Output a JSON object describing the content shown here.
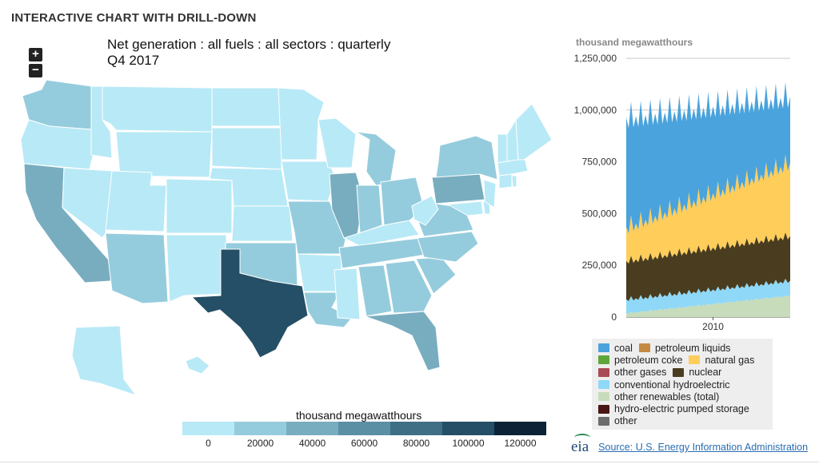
{
  "page": {
    "header": "INTERACTIVE CHART WITH DRILL-DOWN",
    "zoom_in_label": "+",
    "zoom_out_label": "−",
    "source_text": "Source: U.S. Energy Information Administration",
    "logo_text": "eia"
  },
  "colors": {
    "map_scale": [
      "#b8e9f6",
      "#95ccdd",
      "#78adbf",
      "#5b8fa3",
      "#3f6f85",
      "#244f66",
      "#0b2237"
    ],
    "page_bg": "#ffffff"
  },
  "chart_data": [
    {
      "type": "choropleth",
      "title": "Net generation : all fuels : all sectors : quarterly",
      "subtitle": "Q4 2017",
      "legend_title": "thousand megawatthours",
      "scale_ticks": [
        0,
        20000,
        40000,
        60000,
        80000,
        100000,
        120000
      ],
      "regions": [
        {
          "state": "WA",
          "value": 28000
        },
        {
          "state": "OR",
          "value": 15000
        },
        {
          "state": "CA",
          "value": 52000
        },
        {
          "state": "NV",
          "value": 10000
        },
        {
          "state": "ID",
          "value": 4000
        },
        {
          "state": "MT",
          "value": 7000
        },
        {
          "state": "WY",
          "value": 12000
        },
        {
          "state": "UT",
          "value": 10000
        },
        {
          "state": "AZ",
          "value": 27000
        },
        {
          "state": "CO",
          "value": 14000
        },
        {
          "state": "NM",
          "value": 8000
        },
        {
          "state": "ND",
          "value": 10000
        },
        {
          "state": "SD",
          "value": 4000
        },
        {
          "state": "NE",
          "value": 10000
        },
        {
          "state": "KS",
          "value": 12000
        },
        {
          "state": "OK",
          "value": 20000
        },
        {
          "state": "TX",
          "value": 115000
        },
        {
          "state": "MN",
          "value": 15000
        },
        {
          "state": "IA",
          "value": 14000
        },
        {
          "state": "MO",
          "value": 20000
        },
        {
          "state": "AR",
          "value": 15000
        },
        {
          "state": "LA",
          "value": 24000
        },
        {
          "state": "WI",
          "value": 15000
        },
        {
          "state": "IL",
          "value": 46000
        },
        {
          "state": "MI",
          "value": 27000
        },
        {
          "state": "IN",
          "value": 24000
        },
        {
          "state": "OH",
          "value": 30000
        },
        {
          "state": "KY",
          "value": 19000
        },
        {
          "state": "TN",
          "value": 20000
        },
        {
          "state": "MS",
          "value": 15000
        },
        {
          "state": "AL",
          "value": 35000
        },
        {
          "state": "GA",
          "value": 30000
        },
        {
          "state": "FL",
          "value": 57000
        },
        {
          "state": "SC",
          "value": 24000
        },
        {
          "state": "NC",
          "value": 30000
        },
        {
          "state": "VA",
          "value": 22000
        },
        {
          "state": "WV",
          "value": 17000
        },
        {
          "state": "PA",
          "value": 54000
        },
        {
          "state": "NY",
          "value": 33000
        },
        {
          "state": "MD",
          "value": 9000
        },
        {
          "state": "DE",
          "value": 2000
        },
        {
          "state": "NJ",
          "value": 18000
        },
        {
          "state": "CT",
          "value": 10000
        },
        {
          "state": "RI",
          "value": 2000
        },
        {
          "state": "MA",
          "value": 5000
        },
        {
          "state": "VT",
          "value": 500
        },
        {
          "state": "NH",
          "value": 5000
        },
        {
          "state": "ME",
          "value": 2500
        },
        {
          "state": "AK",
          "value": 1500
        },
        {
          "state": "HI",
          "value": 2500
        }
      ]
    },
    {
      "type": "area",
      "stacked": true,
      "ylabel": "thousand megawatthours",
      "y_ticks": [
        0,
        250000,
        500000,
        750000,
        1000000,
        1250000
      ],
      "y_tick_labels": [
        "0",
        "250,000",
        "500,000",
        "750,000",
        "1,000,000",
        "1,250,000"
      ],
      "ylim": [
        0,
        1250000
      ],
      "x_tick_labels": [
        "2010"
      ],
      "x_ticks": [
        2010
      ],
      "x_range": [
        2001,
        2018
      ],
      "grid": true,
      "legend": [
        {
          "name": "coal",
          "color": "#4aa3dc"
        },
        {
          "name": "petroleum liquids",
          "color": "#c58a42"
        },
        {
          "name": "petroleum coke",
          "color": "#5ea63a"
        },
        {
          "name": "natural gas",
          "color": "#ffcd5a"
        },
        {
          "name": "other gases",
          "color": "#a94a54"
        },
        {
          "name": "nuclear",
          "color": "#4a3d1f"
        },
        {
          "name": "conventional hydroelectric",
          "color": "#8fd8f8"
        },
        {
          "name": "other renewables (total)",
          "color": "#c7dcbb"
        },
        {
          "name": "hydro-electric pumped storage",
          "color": "#4a1515"
        },
        {
          "name": "other",
          "color": "#6d6d6d"
        }
      ],
      "totals_by_year": [
        {
          "year": 2001,
          "winter": 910000,
          "summer": 1010000
        },
        {
          "year": 2005,
          "winter": 960000,
          "summer": 1080000
        },
        {
          "year": 2008,
          "winter": 960000,
          "summer": 1090000
        },
        {
          "year": 2011,
          "winter": 950000,
          "summer": 1110000
        },
        {
          "year": 2014,
          "winter": 960000,
          "summer": 1120000
        },
        {
          "year": 2018,
          "winter": 960000,
          "summer": 1150000
        }
      ],
      "series": [
        {
          "name": "other renewables (total)",
          "start": 15000,
          "end": 100000,
          "amp": 8000
        },
        {
          "name": "conventional hydroelectric",
          "start": 60000,
          "end": 65000,
          "amp": 15000
        },
        {
          "name": "nuclear",
          "start": 180000,
          "end": 210000,
          "amp": 15000
        },
        {
          "name": "natural gas",
          "start": 140000,
          "end": 330000,
          "amp": 50000
        },
        {
          "name": "coal",
          "start": 510000,
          "end": 300000,
          "amp": 45000
        }
      ]
    }
  ]
}
